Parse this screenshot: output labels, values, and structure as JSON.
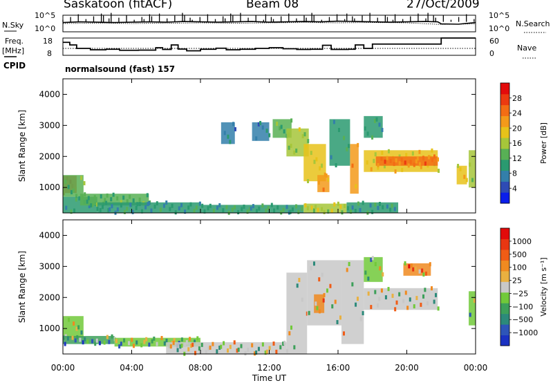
{
  "header": {
    "station": "Saskatoon (fitACF)",
    "beam": "Beam 08",
    "date": "27/Oct/2009"
  },
  "side_labels": {
    "nsky": "N.Sky",
    "nsky_top": "10^5",
    "nsky_bottom": "10^0",
    "freq": "Freq.",
    "freq_unit": "[MHz]",
    "freq_top": "18",
    "freq_bottom": "8",
    "cpid": "CPID",
    "nsearch": "N.Search",
    "nsearch_top": "10^5",
    "nsearch_bottom": "10^0",
    "nave": "Nave",
    "nave_top": "60",
    "nave_bottom": "0"
  },
  "cpid_text": "normalsound (fast) 157",
  "chart_data": [
    {
      "type": "line",
      "name": "noise",
      "series": [
        {
          "name": "N.Sky",
          "x": [
            0,
            1,
            2,
            3,
            4,
            5,
            6,
            7,
            8,
            9,
            10,
            11,
            12,
            13,
            14,
            15,
            16,
            17,
            18,
            19,
            20,
            21,
            21.8,
            22,
            23,
            24
          ],
          "y": [
            2.8,
            3.0,
            2.9,
            2.8,
            2.9,
            3.0,
            2.9,
            3.1,
            3.0,
            2.9,
            3.0,
            3.1,
            2.9,
            3.0,
            3.1,
            3.0,
            3.2,
            3.1,
            3.0,
            2.9,
            3.0,
            3.1,
            3.0,
            2.4,
            2.3,
            2.8
          ]
        },
        {
          "name": "N.Search",
          "x": [
            0,
            2,
            4,
            6,
            8,
            10,
            12,
            14,
            16,
            18,
            20,
            22,
            24
          ],
          "y": [
            2.5,
            2.6,
            2.5,
            2.6,
            2.7,
            2.6,
            2.7,
            2.8,
            2.7,
            2.8,
            2.7,
            2.2,
            2.4
          ]
        }
      ],
      "ylim": [
        0,
        5
      ]
    },
    {
      "type": "line",
      "name": "frequency",
      "series": [
        {
          "name": "Freq.",
          "x": [
            0,
            0.4,
            0.8,
            1.6,
            2.5,
            3.3,
            4.4,
            5.4,
            5.8,
            6.3,
            6.7,
            7.2,
            8.0,
            8.9,
            9.5,
            10.3,
            11.2,
            12.0,
            12.8,
            13.6,
            14.4,
            15.1,
            15.6,
            16.6,
            17.0,
            17.5,
            18.0,
            21.8,
            22.0,
            24
          ],
          "y": [
            15.5,
            14.0,
            12.0,
            11.2,
            11.5,
            10.9,
            11.0,
            12.4,
            11.4,
            14.0,
            11.6,
            10.6,
            11.5,
            12.1,
            11.2,
            11.5,
            12.0,
            12.4,
            11.8,
            11.4,
            11.5,
            13.8,
            11.4,
            11.5,
            14.0,
            12.0,
            14.5,
            14.5,
            18.0,
            18.0
          ]
        },
        {
          "name": "Nave",
          "x": [
            0,
            24
          ],
          "y": [
            12.0,
            12.0
          ]
        }
      ],
      "ylim": [
        8,
        18
      ]
    },
    {
      "type": "heatmap",
      "name": "power",
      "x_range": [
        0,
        24
      ],
      "y_range": [
        180,
        4500
      ],
      "xlabel": "",
      "ylabel": "Slant Range [km]",
      "x_ticks": [
        "00:00",
        "04:00",
        "08:00",
        "12:00",
        "16:00",
        "20:00",
        "00:00"
      ],
      "y_ticks": [
        1000,
        2000,
        3000,
        4000
      ],
      "colorbar": {
        "label": "Power [dB]",
        "ticks": [
          4,
          8,
          12,
          16,
          20,
          24,
          28
        ],
        "range": [
          0,
          32
        ],
        "colors": [
          "#0a1eeb",
          "#2e4bb5",
          "#337faa",
          "#2a9a70",
          "#58b055",
          "#a6c63a",
          "#e7c21a",
          "#f39a1a",
          "#f36d14",
          "#ec3a10",
          "#e30b0b"
        ]
      },
      "regions": [
        {
          "x0": 0.0,
          "x1": 0.8,
          "y0": 820,
          "y1": 1380,
          "v": 27
        },
        {
          "x0": 0.0,
          "x1": 1.2,
          "y0": 700,
          "y1": 1400,
          "v": 13
        },
        {
          "x0": 0.0,
          "x1": 2.0,
          "y0": 180,
          "y1": 700,
          "v": 11
        },
        {
          "x0": 1.0,
          "x1": 5.0,
          "y0": 420,
          "y1": 800,
          "v": 12
        },
        {
          "x0": 2.0,
          "x1": 8.0,
          "y0": 180,
          "y1": 520,
          "v": 9
        },
        {
          "x0": 8.0,
          "x1": 14.0,
          "y0": 180,
          "y1": 440,
          "v": 11
        },
        {
          "x0": 14.0,
          "x1": 16.5,
          "y0": 180,
          "y1": 480,
          "v": 17
        },
        {
          "x0": 16.5,
          "x1": 19.5,
          "y0": 180,
          "y1": 520,
          "v": 10
        },
        {
          "x0": 9.2,
          "x1": 10.0,
          "y0": 2400,
          "y1": 3100,
          "v": 8
        },
        {
          "x0": 11.0,
          "x1": 12.0,
          "y0": 2500,
          "y1": 3100,
          "v": 8
        },
        {
          "x0": 12.2,
          "x1": 13.3,
          "y0": 2600,
          "y1": 3200,
          "v": 12
        },
        {
          "x0": 13.0,
          "x1": 14.3,
          "y0": 2000,
          "y1": 2900,
          "v": 15
        },
        {
          "x0": 14.0,
          "x1": 15.3,
          "y0": 1200,
          "y1": 2400,
          "v": 18
        },
        {
          "x0": 14.8,
          "x1": 15.5,
          "y0": 850,
          "y1": 1400,
          "v": 23
        },
        {
          "x0": 15.5,
          "x1": 16.7,
          "y0": 1700,
          "y1": 3200,
          "v": 10
        },
        {
          "x0": 16.7,
          "x1": 17.2,
          "y0": 800,
          "y1": 2400,
          "v": 22
        },
        {
          "x0": 17.5,
          "x1": 18.6,
          "y0": 2600,
          "y1": 3300,
          "v": 10
        },
        {
          "x0": 17.5,
          "x1": 21.8,
          "y0": 1500,
          "y1": 2200,
          "v": 18
        },
        {
          "x0": 18.2,
          "x1": 21.8,
          "y0": 1700,
          "y1": 2000,
          "v": 24
        },
        {
          "x0": 22.9,
          "x1": 23.5,
          "y0": 1100,
          "y1": 1700,
          "v": 20
        },
        {
          "x0": 23.6,
          "x1": 24.0,
          "y0": 1000,
          "y1": 2200,
          "v": 15
        }
      ]
    },
    {
      "type": "heatmap",
      "name": "velocity",
      "x_range": [
        0,
        24
      ],
      "y_range": [
        180,
        4500
      ],
      "xlabel": "Time UT",
      "ylabel": "Slant Range [km]",
      "x_ticks": [
        "00:00",
        "04:00",
        "08:00",
        "12:00",
        "16:00",
        "20:00",
        "00:00"
      ],
      "y_ticks": [
        1000,
        2000,
        3000,
        4000
      ],
      "colorbar": {
        "label": "Velocity [m s⁻¹]",
        "ticks": [
          "1000",
          "500",
          "100",
          "25",
          "−25",
          "−100",
          "−500",
          "−1000"
        ],
        "colors": [
          "#1b32c2",
          "#2e55b8",
          "#2c8a7a",
          "#3da05a",
          "#71c93a",
          "#c8c8c8",
          "#e9b040",
          "#f08a20",
          "#f05c16",
          "#e83612",
          "#e20a0a"
        ]
      },
      "regions": [
        {
          "x0": 0.0,
          "x1": 1.2,
          "y0": 700,
          "y1": 1400,
          "v": 4
        },
        {
          "x0": 0.0,
          "x1": 3.0,
          "y0": 500,
          "y1": 760,
          "v": 3
        },
        {
          "x0": 3.0,
          "x1": 8.0,
          "y0": 420,
          "y1": 700,
          "v": 4
        },
        {
          "x0": 6.0,
          "x1": 13.0,
          "y0": 180,
          "y1": 560,
          "v": 5
        },
        {
          "x0": 13.0,
          "x1": 14.2,
          "y0": 180,
          "y1": 2800,
          "v": 5
        },
        {
          "x0": 14.2,
          "x1": 16.2,
          "y0": 1100,
          "y1": 3200,
          "v": 5
        },
        {
          "x0": 14.6,
          "x1": 15.2,
          "y0": 1500,
          "y1": 2100,
          "v": 7
        },
        {
          "x0": 16.2,
          "x1": 17.5,
          "y0": 500,
          "y1": 3200,
          "v": 5
        },
        {
          "x0": 17.5,
          "x1": 21.8,
          "y0": 1600,
          "y1": 2300,
          "v": 5
        },
        {
          "x0": 17.5,
          "x1": 18.6,
          "y0": 2500,
          "y1": 3300,
          "v": 4
        },
        {
          "x0": 19.8,
          "x1": 21.4,
          "y0": 2700,
          "y1": 3100,
          "v": 7
        },
        {
          "x0": 23.6,
          "x1": 24.0,
          "y0": 1100,
          "y1": 2200,
          "v": 4
        }
      ]
    }
  ]
}
